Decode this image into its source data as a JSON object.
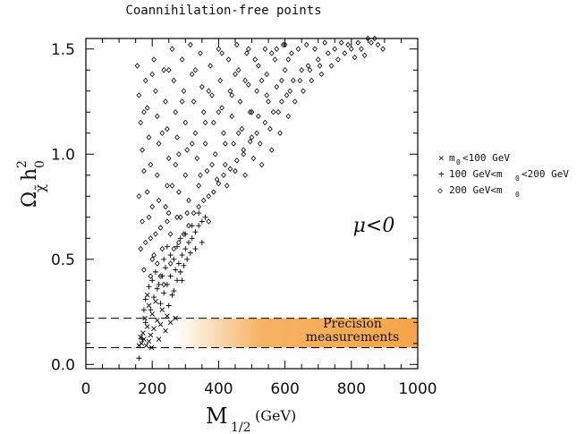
{
  "chart_data": {
    "type": "scatter",
    "title": "Coannihilation-free points",
    "xlabel": "M",
    "xlabel_sub": "1/2",
    "xlabel_unit": "(GeV)",
    "ylabel": "Ω",
    "ylabel_sub": "χ̃",
    "ylabel_h": "h",
    "ylabel_sup": "2",
    "ylabel_sub2": "0",
    "xlim": [
      0,
      1000
    ],
    "ylim": [
      -0.02,
      1.55
    ],
    "xticks": [
      0,
      200,
      400,
      600,
      800,
      1000
    ],
    "yticks": [
      0.0,
      0.5,
      1.0,
      1.5
    ],
    "xticklabels": [
      "0",
      "200",
      "400",
      "600",
      "800",
      "1000"
    ],
    "yticklabels": [
      "0.0",
      "0.5",
      "1.0",
      "1.5"
    ],
    "sign_label": "μ<0",
    "band": {
      "ymin": 0.08,
      "ymax": 0.22,
      "label_line1": "Precision",
      "label_line2": "measurements",
      "color": "#f5a54a"
    },
    "legend": [
      {
        "marker": "×",
        "text": "m",
        "sub": "0",
        "rest": "<100  GeV"
      },
      {
        "marker": "+",
        "text": "100  GeV<m",
        "sub": "0",
        "rest": "<200  GeV"
      },
      {
        "marker": "◇",
        "text": "200  GeV<m",
        "sub": "0",
        "rest": ""
      }
    ],
    "series": [
      {
        "name": "m0<100 GeV",
        "marker": "x",
        "points": [
          [
            160,
            0.09
          ],
          [
            168,
            0.1
          ],
          [
            175,
            0.12
          ],
          [
            182,
            0.09
          ],
          [
            190,
            0.11
          ],
          [
            172,
            0.15
          ],
          [
            185,
            0.18
          ],
          [
            195,
            0.14
          ],
          [
            205,
            0.17
          ],
          [
            178,
            0.22
          ],
          [
            200,
            0.24
          ],
          [
            215,
            0.21
          ],
          [
            225,
            0.19
          ],
          [
            190,
            0.28
          ],
          [
            210,
            0.3
          ],
          [
            230,
            0.26
          ],
          [
            245,
            0.23
          ],
          [
            165,
            0.13
          ],
          [
            220,
            0.12
          ],
          [
            240,
            0.16
          ],
          [
            255,
            0.2
          ],
          [
            270,
            0.22
          ],
          [
            198,
            0.08
          ],
          [
            185,
            0.33
          ]
        ]
      },
      {
        "name": "100 GeV<m0<200 GeV",
        "marker": "+",
        "points": [
          [
            160,
            0.03
          ],
          [
            170,
            0.12
          ],
          [
            180,
            0.2
          ],
          [
            195,
            0.26
          ],
          [
            205,
            0.32
          ],
          [
            215,
            0.36
          ],
          [
            225,
            0.29
          ],
          [
            235,
            0.34
          ],
          [
            245,
            0.38
          ],
          [
            255,
            0.42
          ],
          [
            260,
            0.33
          ],
          [
            270,
            0.45
          ],
          [
            280,
            0.48
          ],
          [
            290,
            0.52
          ],
          [
            300,
            0.55
          ],
          [
            310,
            0.58
          ],
          [
            320,
            0.6
          ],
          [
            330,
            0.63
          ],
          [
            340,
            0.66
          ],
          [
            350,
            0.68
          ],
          [
            360,
            0.7
          ],
          [
            250,
            0.28
          ],
          [
            265,
            0.35
          ],
          [
            275,
            0.4
          ],
          [
            285,
            0.44
          ],
          [
            295,
            0.47
          ],
          [
            305,
            0.5
          ],
          [
            315,
            0.53
          ],
          [
            230,
            0.42
          ],
          [
            240,
            0.46
          ],
          [
            220,
            0.38
          ],
          [
            210,
            0.44
          ],
          [
            200,
            0.4
          ],
          [
            190,
            0.37
          ],
          [
            180,
            0.31
          ],
          [
            175,
            0.26
          ],
          [
            265,
            0.5
          ],
          [
            275,
            0.56
          ],
          [
            285,
            0.6
          ],
          [
            255,
            0.52
          ],
          [
            245,
            0.56
          ],
          [
            235,
            0.5
          ],
          [
            300,
            0.62
          ],
          [
            320,
            0.66
          ],
          [
            340,
            0.72
          ],
          [
            330,
            0.55
          ],
          [
            350,
            0.58
          ],
          [
            290,
            0.4
          ]
        ]
      },
      {
        "name": "200 GeV<m0",
        "marker": "diamond",
        "points": [
          [
            155,
            1.42
          ],
          [
            160,
            1.28
          ],
          [
            165,
            1.15
          ],
          [
            170,
            1.02
          ],
          [
            175,
            0.92
          ],
          [
            160,
            0.8
          ],
          [
            170,
            0.68
          ],
          [
            165,
            0.55
          ],
          [
            175,
            0.45
          ],
          [
            180,
            1.35
          ],
          [
            185,
            1.22
          ],
          [
            190,
            1.08
          ],
          [
            195,
            0.95
          ],
          [
            185,
            0.82
          ],
          [
            190,
            0.7
          ],
          [
            195,
            0.6
          ],
          [
            200,
            0.5
          ],
          [
            205,
            1.45
          ],
          [
            210,
            1.3
          ],
          [
            215,
            1.18
          ],
          [
            220,
            1.05
          ],
          [
            215,
            0.9
          ],
          [
            220,
            0.78
          ],
          [
            225,
            0.65
          ],
          [
            230,
            0.55
          ],
          [
            235,
            1.4
          ],
          [
            240,
            1.25
          ],
          [
            245,
            1.12
          ],
          [
            250,
            0.98
          ],
          [
            245,
            0.85
          ],
          [
            250,
            0.72
          ],
          [
            255,
            0.62
          ],
          [
            260,
            1.5
          ],
          [
            265,
            1.35
          ],
          [
            270,
            1.2
          ],
          [
            275,
            1.08
          ],
          [
            270,
            0.95
          ],
          [
            280,
            0.82
          ],
          [
            285,
            0.7
          ],
          [
            290,
            1.45
          ],
          [
            295,
            1.3
          ],
          [
            300,
            1.15
          ],
          [
            305,
            1.02
          ],
          [
            300,
            0.9
          ],
          [
            310,
            0.78
          ],
          [
            315,
            1.52
          ],
          [
            320,
            1.38
          ],
          [
            325,
            1.25
          ],
          [
            330,
            1.1
          ],
          [
            335,
            0.98
          ],
          [
            340,
            0.85
          ],
          [
            345,
            1.48
          ],
          [
            350,
            1.32
          ],
          [
            355,
            1.2
          ],
          [
            360,
            1.05
          ],
          [
            365,
            0.92
          ],
          [
            370,
            0.8
          ],
          [
            375,
            1.42
          ],
          [
            380,
            1.28
          ],
          [
            385,
            1.15
          ],
          [
            390,
            1.0
          ],
          [
            395,
            0.88
          ],
          [
            400,
            1.5
          ],
          [
            405,
            1.35
          ],
          [
            410,
            1.22
          ],
          [
            415,
            1.1
          ],
          [
            420,
            0.95
          ],
          [
            425,
            0.85
          ],
          [
            430,
            1.45
          ],
          [
            435,
            1.3
          ],
          [
            440,
            1.18
          ],
          [
            445,
            1.05
          ],
          [
            450,
            0.92
          ],
          [
            455,
            1.52
          ],
          [
            460,
            1.4
          ],
          [
            465,
            1.25
          ],
          [
            470,
            1.12
          ],
          [
            475,
            1.0
          ],
          [
            480,
            0.9
          ],
          [
            485,
            1.48
          ],
          [
            490,
            1.33
          ],
          [
            495,
            1.2
          ],
          [
            500,
            1.08
          ],
          [
            505,
            0.98
          ],
          [
            510,
            1.45
          ],
          [
            515,
            1.3
          ],
          [
            520,
            1.18
          ],
          [
            525,
            1.05
          ],
          [
            530,
            0.95
          ],
          [
            540,
            1.5
          ],
          [
            545,
            1.38
          ],
          [
            550,
            1.25
          ],
          [
            555,
            1.12
          ],
          [
            560,
            1.02
          ],
          [
            570,
            1.45
          ],
          [
            575,
            1.32
          ],
          [
            580,
            1.2
          ],
          [
            585,
            1.1
          ],
          [
            595,
            1.52
          ],
          [
            600,
            1.4
          ],
          [
            605,
            1.28
          ],
          [
            610,
            1.18
          ],
          [
            620,
            1.48
          ],
          [
            625,
            1.35
          ],
          [
            630,
            1.25
          ],
          [
            640,
            1.5
          ],
          [
            650,
            1.4
          ],
          [
            655,
            1.3
          ],
          [
            665,
            1.52
          ],
          [
            670,
            1.42
          ],
          [
            680,
            1.35
          ],
          [
            690,
            1.5
          ],
          [
            700,
            1.45
          ],
          [
            710,
            1.38
          ],
          [
            720,
            1.53
          ],
          [
            730,
            1.48
          ],
          [
            740,
            1.42
          ],
          [
            750,
            1.5
          ],
          [
            760,
            1.45
          ],
          [
            770,
            1.53
          ],
          [
            780,
            1.48
          ],
          [
            790,
            1.52
          ],
          [
            800,
            1.5
          ],
          [
            810,
            1.46
          ],
          [
            820,
            1.53
          ],
          [
            830,
            1.5
          ],
          [
            840,
            1.47
          ],
          [
            850,
            1.55
          ],
          [
            860,
            1.53
          ],
          [
            870,
            1.55
          ],
          [
            880,
            1.52
          ],
          [
            895,
            1.5
          ],
          [
            225,
            0.42
          ],
          [
            235,
            0.38
          ],
          [
            255,
            0.48
          ],
          [
            265,
            0.55
          ],
          [
            280,
            0.58
          ],
          [
            295,
            0.62
          ],
          [
            310,
            0.66
          ],
          [
            325,
            0.72
          ],
          [
            340,
            0.75
          ],
          [
            355,
            0.78
          ],
          [
            370,
            0.68
          ],
          [
            385,
            0.82
          ],
          [
            400,
            0.86
          ],
          [
            415,
            0.9
          ],
          [
            435,
            0.93
          ],
          [
            455,
            0.97
          ],
          [
            475,
            1.02
          ],
          [
            495,
            1.06
          ],
          [
            515,
            1.1
          ],
          [
            540,
            1.15
          ],
          [
            565,
            1.2
          ],
          [
            590,
            1.25
          ],
          [
            615,
            1.3
          ],
          [
            645,
            1.35
          ],
          [
            675,
            1.4
          ],
          [
            705,
            1.42
          ],
          [
            200,
            0.75
          ],
          [
            210,
            0.62
          ],
          [
            240,
            0.75
          ],
          [
            260,
            0.85
          ],
          [
            280,
            1.0
          ],
          [
            320,
            1.05
          ],
          [
            360,
            1.15
          ],
          [
            400,
            1.2
          ],
          [
            440,
            1.28
          ],
          [
            480,
            1.35
          ],
          [
            520,
            1.42
          ],
          [
            560,
            1.48
          ],
          [
            600,
            1.52
          ],
          [
            175,
            1.2
          ],
          [
            200,
            1.38
          ],
          [
            230,
            1.1
          ],
          [
            250,
            1.4
          ],
          [
            290,
            1.25
          ],
          [
            330,
            1.4
          ],
          [
            370,
            1.3
          ],
          [
            410,
            1.48
          ],
          [
            450,
            1.38
          ],
          [
            490,
            1.5
          ],
          [
            530,
            1.35
          ],
          [
            575,
            1.5
          ],
          [
            610,
            1.45
          ],
          [
            180,
            0.58
          ],
          [
            205,
            0.52
          ],
          [
            195,
            0.42
          ],
          [
            215,
            0.48
          ],
          [
            245,
            0.68
          ],
          [
            275,
            0.7
          ],
          [
            305,
            0.72
          ],
          [
            345,
            0.9
          ],
          [
            380,
            0.95
          ],
          [
            420,
            1.05
          ],
          [
            460,
            1.1
          ],
          [
            500,
            1.2
          ],
          [
            545,
            1.28
          ],
          [
            590,
            1.35
          ]
        ]
      }
    ]
  }
}
